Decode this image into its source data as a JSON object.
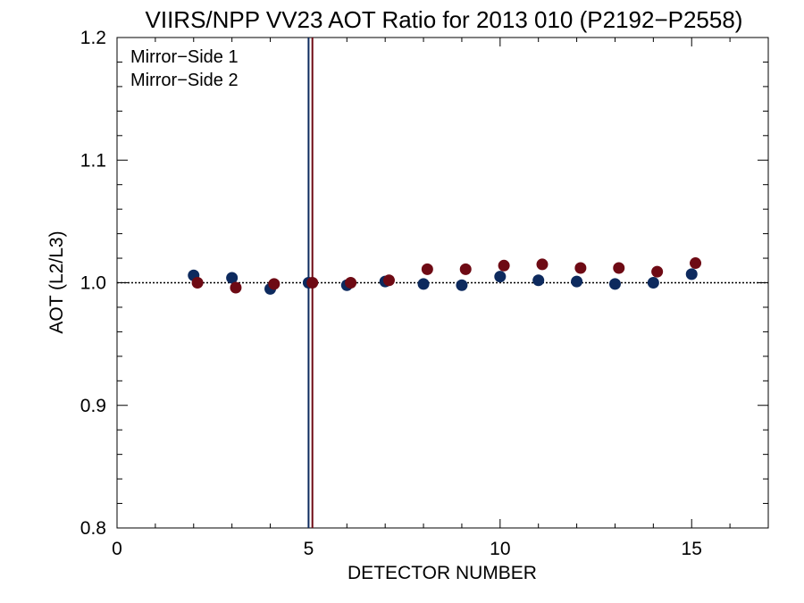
{
  "chart_data": {
    "type": "scatter",
    "title": "VIIRS/NPP VV23 AOT Ratio for 2013 010 (P2192−P2558)",
    "xlabel": "DETECTOR NUMBER",
    "ylabel": "AOT (L2/L3)",
    "xlim": [
      0,
      17
    ],
    "ylim": [
      0.8,
      1.2
    ],
    "xticks": [
      0,
      5,
      10,
      15
    ],
    "xtick_labels": [
      "0",
      "5",
      "10",
      "15"
    ],
    "yticks": [
      0.8,
      0.9,
      1.0,
      1.1,
      1.2
    ],
    "ytick_labels": [
      "0.8",
      "0.9",
      "1.0",
      "1.1",
      "1.2"
    ],
    "reference_line_y": 1.0,
    "vertical_lines": [
      {
        "x": 5,
        "color": "#0d2a5e"
      },
      {
        "x": 5.1,
        "color": "#6e0a14"
      }
    ],
    "legend_position": "top-left",
    "series": [
      {
        "name": "Mirror−Side 1",
        "color": "#0d2a5e",
        "x": [
          2,
          3,
          4,
          5,
          6,
          7,
          8,
          9,
          10,
          11,
          12,
          13,
          14,
          15
        ],
        "y": [
          1.006,
          1.004,
          0.995,
          1.0,
          0.998,
          1.001,
          0.999,
          0.998,
          1.005,
          1.002,
          1.001,
          0.999,
          1.0,
          1.007
        ]
      },
      {
        "name": "Mirror−Side 2",
        "color": "#6e0a14",
        "x": [
          2.1,
          3.1,
          4.1,
          5.1,
          6.1,
          7.1,
          8.1,
          9.1,
          10.1,
          11.1,
          12.1,
          13.1,
          14.1,
          15.1
        ],
        "y": [
          1.0,
          0.996,
          0.999,
          1.0,
          1.0,
          1.002,
          1.011,
          1.011,
          1.014,
          1.015,
          1.012,
          1.012,
          1.009,
          1.016
        ]
      }
    ]
  }
}
